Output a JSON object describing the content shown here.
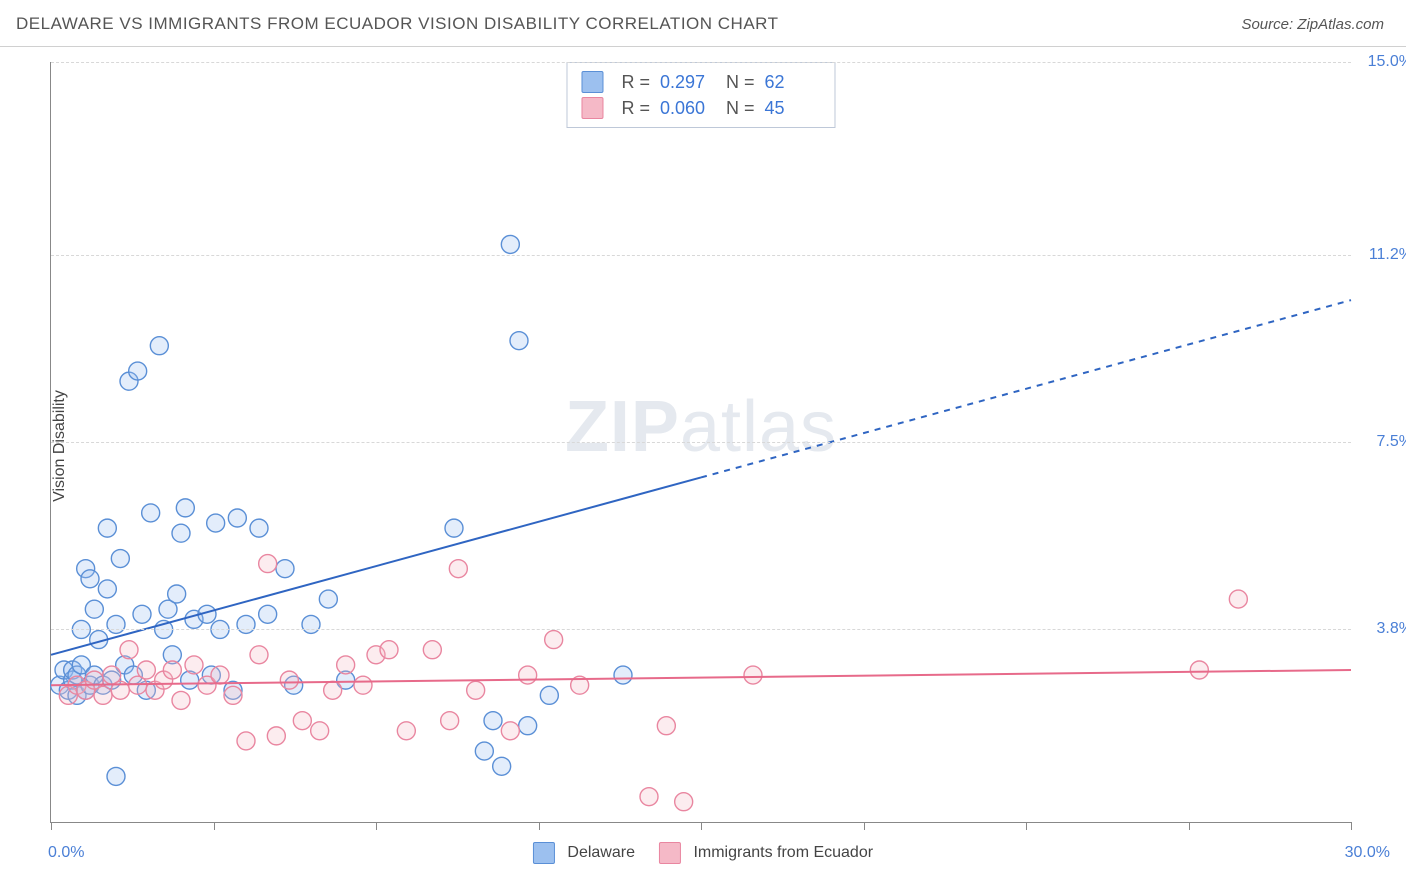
{
  "title": "DELAWARE VS IMMIGRANTS FROM ECUADOR VISION DISABILITY CORRELATION CHART",
  "source": "Source: ZipAtlas.com",
  "ylabel": "Vision Disability",
  "watermark": {
    "bold": "ZIP",
    "light": "atlas"
  },
  "chart": {
    "type": "scatter",
    "background_color": "#ffffff",
    "grid_color": "#d8d8d8",
    "axis_color": "#888888",
    "xlim": [
      0,
      30
    ],
    "ylim": [
      0,
      15
    ],
    "x_origin_label": "0.0%",
    "x_max_label": "30.0%",
    "x_tick_positions": [
      0,
      3.75,
      7.5,
      11.25,
      15,
      18.75,
      22.5,
      26.25,
      30
    ],
    "y_gridlines": [
      {
        "value": 3.8,
        "label": "3.8%"
      },
      {
        "value": 7.5,
        "label": "7.5%"
      },
      {
        "value": 11.2,
        "label": "11.2%"
      },
      {
        "value": 15.0,
        "label": "15.0%"
      }
    ],
    "marker_radius": 9,
    "marker_stroke_width": 1.4,
    "marker_fill_opacity": 0.28,
    "trend_line_width": 2,
    "trend_dash_pattern": "6,6"
  },
  "series": [
    {
      "name": "Delaware",
      "fill_color": "#9cc0ef",
      "stroke_color": "#5a8fd6",
      "line_color": "#2f65c2",
      "stats": {
        "R": "0.297",
        "N": "62"
      },
      "trend": {
        "x1": 0,
        "y1": 3.3,
        "x2_solid": 15,
        "y2_solid": 6.8,
        "x2": 30,
        "y2": 10.3
      },
      "points": [
        [
          0.2,
          2.7
        ],
        [
          0.3,
          3.0
        ],
        [
          0.4,
          2.6
        ],
        [
          0.5,
          2.8
        ],
        [
          0.5,
          3.0
        ],
        [
          0.6,
          2.5
        ],
        [
          0.6,
          2.9
        ],
        [
          0.7,
          3.1
        ],
        [
          0.7,
          3.8
        ],
        [
          0.8,
          2.6
        ],
        [
          0.8,
          5.0
        ],
        [
          0.9,
          2.7
        ],
        [
          0.9,
          4.8
        ],
        [
          1.0,
          2.9
        ],
        [
          1.0,
          4.2
        ],
        [
          1.1,
          3.6
        ],
        [
          1.2,
          2.7
        ],
        [
          1.3,
          4.6
        ],
        [
          1.3,
          5.8
        ],
        [
          1.4,
          2.8
        ],
        [
          1.5,
          3.9
        ],
        [
          1.5,
          0.9
        ],
        [
          1.6,
          5.2
        ],
        [
          1.7,
          3.1
        ],
        [
          1.8,
          8.7
        ],
        [
          1.9,
          2.9
        ],
        [
          2.0,
          8.9
        ],
        [
          2.1,
          4.1
        ],
        [
          2.2,
          2.6
        ],
        [
          2.3,
          6.1
        ],
        [
          2.5,
          9.4
        ],
        [
          2.6,
          3.8
        ],
        [
          2.7,
          4.2
        ],
        [
          2.8,
          3.3
        ],
        [
          2.9,
          4.5
        ],
        [
          3.0,
          5.7
        ],
        [
          3.1,
          6.2
        ],
        [
          3.2,
          2.8
        ],
        [
          3.3,
          4.0
        ],
        [
          3.6,
          4.1
        ],
        [
          3.7,
          2.9
        ],
        [
          3.8,
          5.9
        ],
        [
          3.9,
          3.8
        ],
        [
          4.2,
          2.6
        ],
        [
          4.3,
          6.0
        ],
        [
          4.5,
          3.9
        ],
        [
          4.8,
          5.8
        ],
        [
          5.0,
          4.1
        ],
        [
          5.4,
          5.0
        ],
        [
          5.6,
          2.7
        ],
        [
          6.0,
          3.9
        ],
        [
          6.4,
          4.4
        ],
        [
          6.8,
          2.8
        ],
        [
          9.3,
          5.8
        ],
        [
          10.0,
          1.4
        ],
        [
          10.2,
          2.0
        ],
        [
          10.4,
          1.1
        ],
        [
          10.6,
          11.4
        ],
        [
          10.8,
          9.5
        ],
        [
          11.0,
          1.9
        ],
        [
          11.5,
          2.5
        ],
        [
          13.2,
          2.9
        ]
      ]
    },
    {
      "name": "Immigrants from Ecuador",
      "fill_color": "#f5b9c7",
      "stroke_color": "#e986a0",
      "line_color": "#e76a8a",
      "stats": {
        "R": "0.060",
        "N": "45"
      },
      "trend": {
        "x1": 0,
        "y1": 2.7,
        "x2_solid": 30,
        "y2_solid": 3.0,
        "x2": 30,
        "y2": 3.0
      },
      "points": [
        [
          0.4,
          2.5
        ],
        [
          0.6,
          2.7
        ],
        [
          0.8,
          2.6
        ],
        [
          1.0,
          2.8
        ],
        [
          1.2,
          2.5
        ],
        [
          1.4,
          2.9
        ],
        [
          1.6,
          2.6
        ],
        [
          1.8,
          3.4
        ],
        [
          2.0,
          2.7
        ],
        [
          2.2,
          3.0
        ],
        [
          2.4,
          2.6
        ],
        [
          2.6,
          2.8
        ],
        [
          2.8,
          3.0
        ],
        [
          3.0,
          2.4
        ],
        [
          3.3,
          3.1
        ],
        [
          3.6,
          2.7
        ],
        [
          3.9,
          2.9
        ],
        [
          4.2,
          2.5
        ],
        [
          4.5,
          1.6
        ],
        [
          4.8,
          3.3
        ],
        [
          5.0,
          5.1
        ],
        [
          5.2,
          1.7
        ],
        [
          5.5,
          2.8
        ],
        [
          5.8,
          2.0
        ],
        [
          6.2,
          1.8
        ],
        [
          6.5,
          2.6
        ],
        [
          6.8,
          3.1
        ],
        [
          7.2,
          2.7
        ],
        [
          7.5,
          3.3
        ],
        [
          7.8,
          3.4
        ],
        [
          8.2,
          1.8
        ],
        [
          8.8,
          3.4
        ],
        [
          9.2,
          2.0
        ],
        [
          9.4,
          5.0
        ],
        [
          9.8,
          2.6
        ],
        [
          10.6,
          1.8
        ],
        [
          11.0,
          2.9
        ],
        [
          11.6,
          3.6
        ],
        [
          12.2,
          2.7
        ],
        [
          13.8,
          0.5
        ],
        [
          14.2,
          1.9
        ],
        [
          14.6,
          0.4
        ],
        [
          16.2,
          2.9
        ],
        [
          26.5,
          3.0
        ],
        [
          27.4,
          4.4
        ]
      ]
    }
  ],
  "stats_labels": {
    "R_prefix": "R  =",
    "N_prefix": "N  ="
  },
  "bottom_legend": {
    "items": [
      {
        "label": "Delaware",
        "fill": "#9cc0ef",
        "stroke": "#5a8fd6"
      },
      {
        "label": "Immigrants from Ecuador",
        "fill": "#f5b9c7",
        "stroke": "#e986a0"
      }
    ]
  }
}
